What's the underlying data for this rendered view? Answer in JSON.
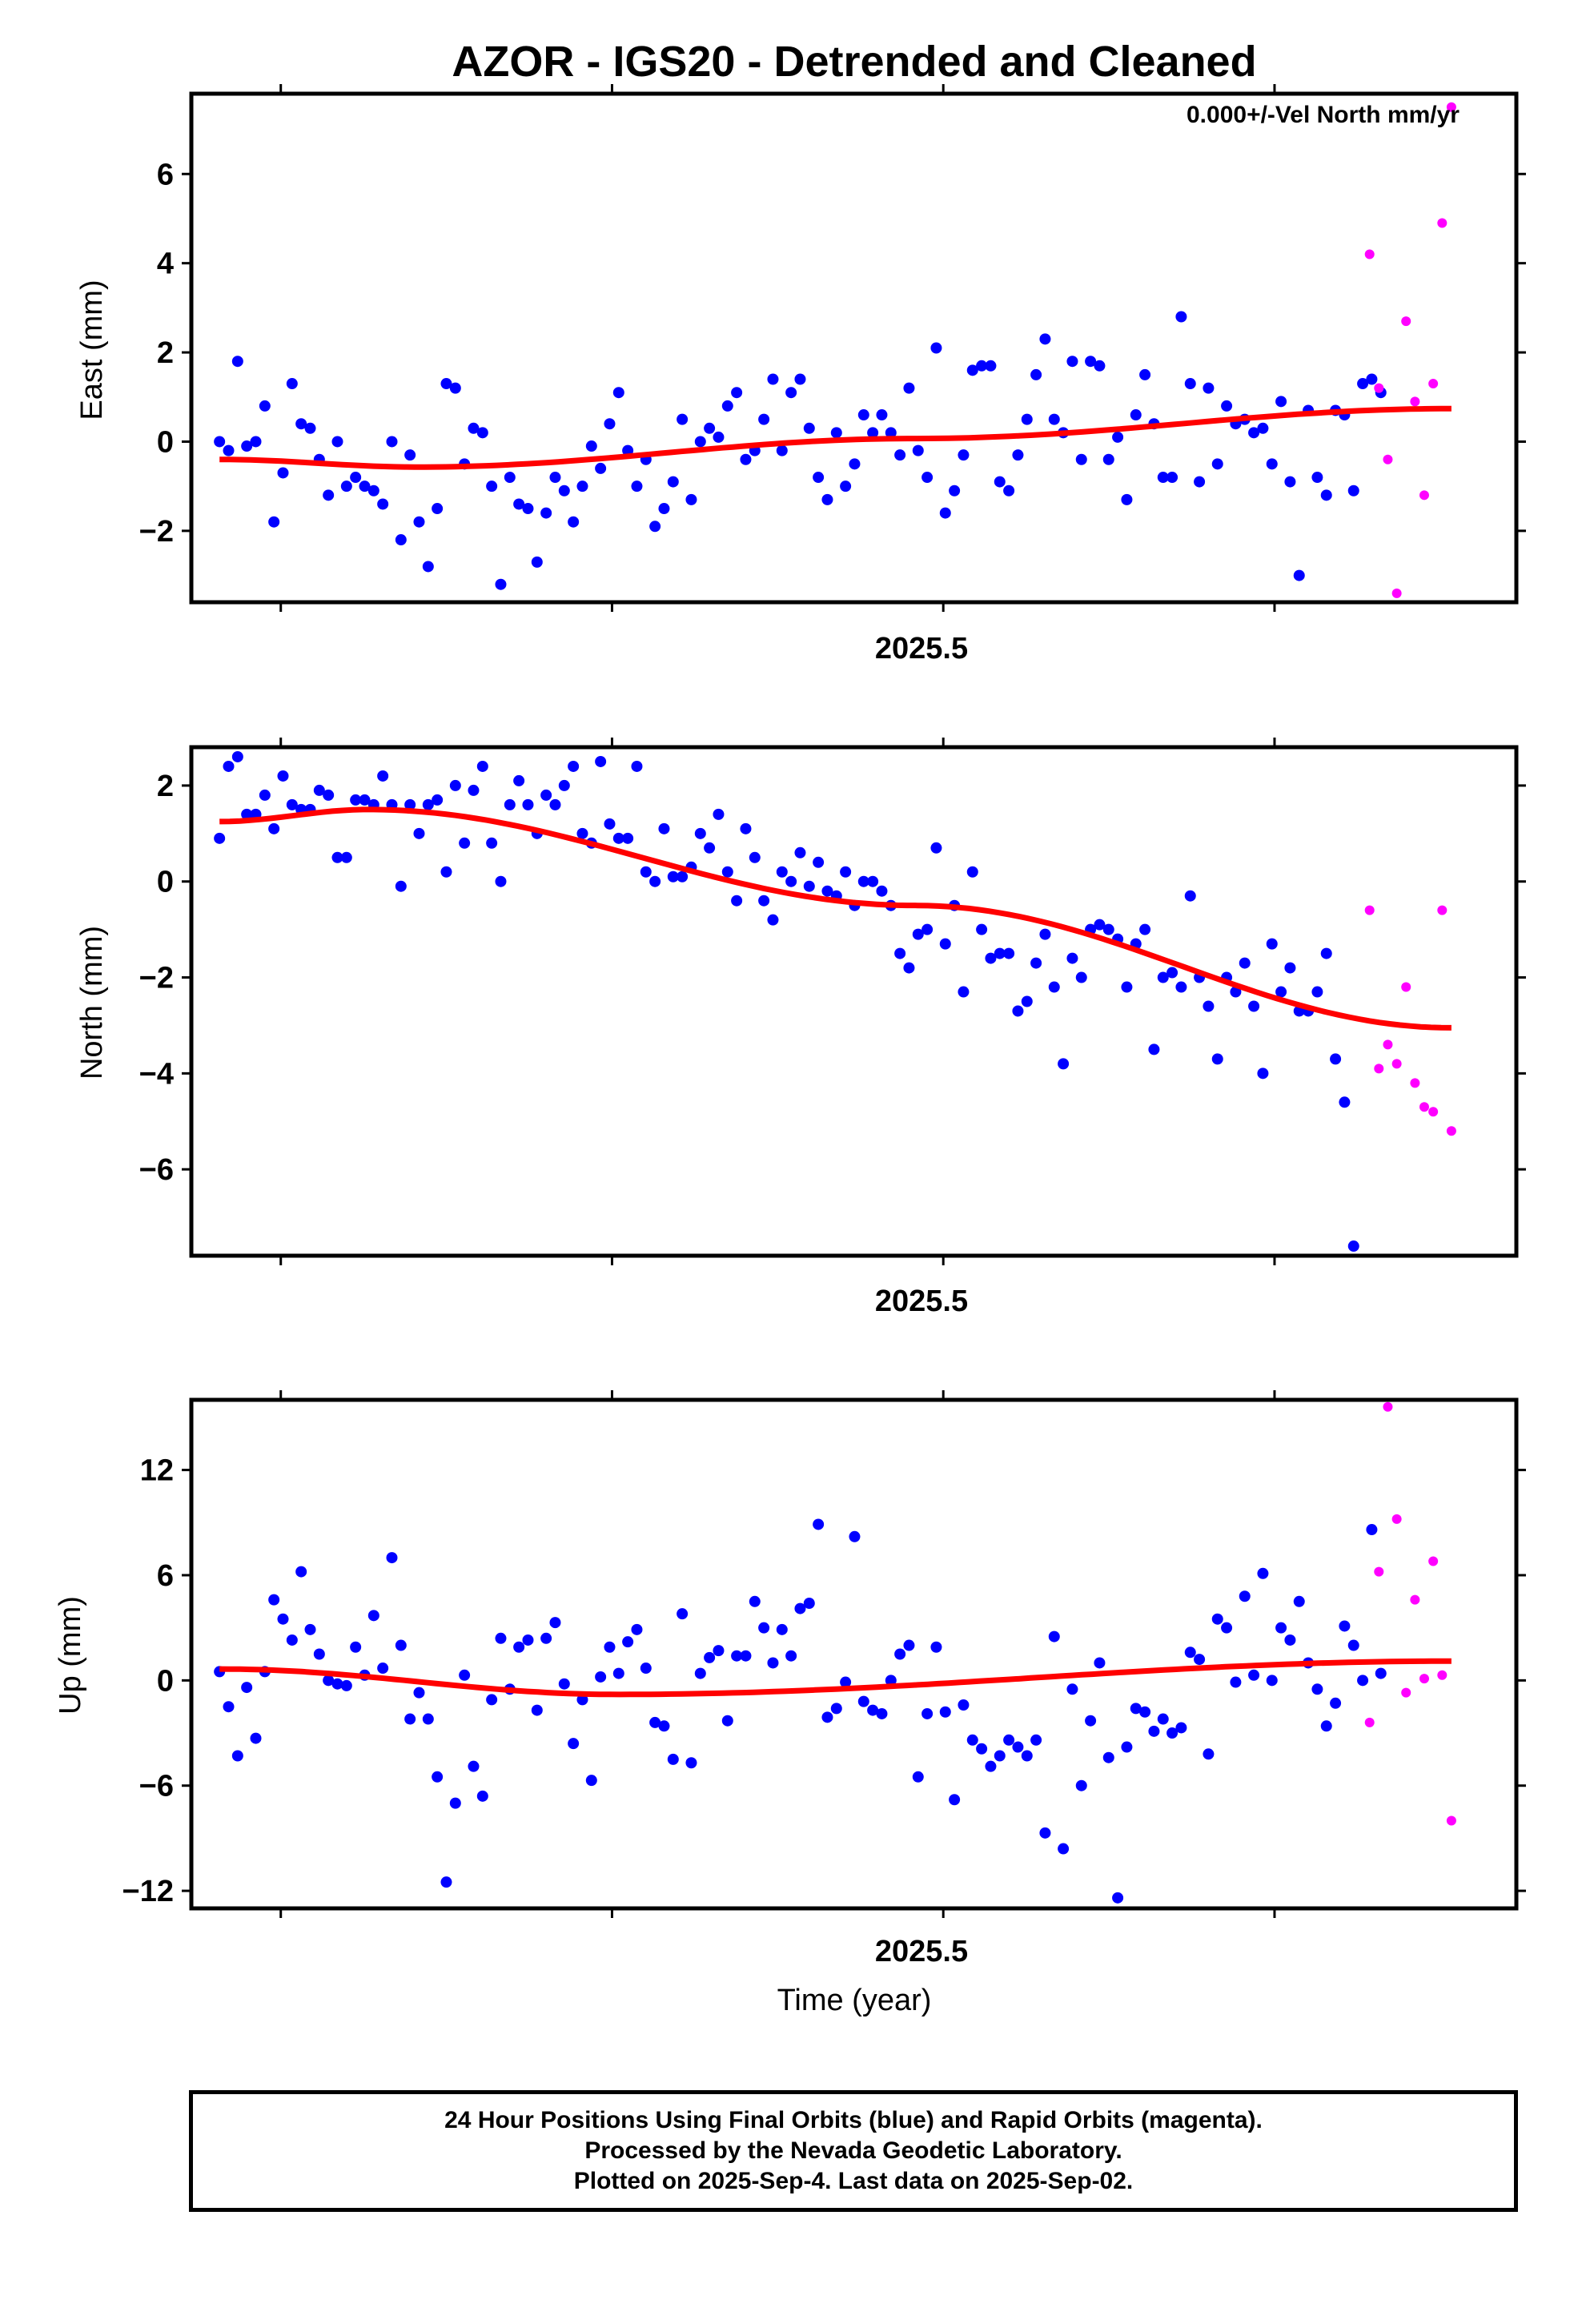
{
  "title": "AZOR - IGS20 - Detrended and Cleaned",
  "legend_note": "0.000+/-Vel North mm/yr",
  "colors": {
    "final_orbits": "#0000ff",
    "rapid_orbits": "#ff00ff",
    "fit_line": "#ff0000",
    "axes": "#000000"
  },
  "x_axis": {
    "label": "Time (year)",
    "tick_label": "2025.5",
    "range": [
      2025.273,
      2025.673
    ]
  },
  "footer": {
    "line1": "24 Hour Positions Using Final Orbits (blue) and Rapid Orbits (magenta).",
    "line2": "Processed by the Nevada Geodetic Laboratory.",
    "line3": "Plotted on 2025-Sep-4. Last data on 2025-Sep-02."
  },
  "chart_data": [
    {
      "type": "scatter",
      "ylabel": "East (mm)",
      "ylim": [
        -3.6,
        7.8
      ],
      "yticks": [
        -2,
        0,
        2,
        4,
        6
      ],
      "ytick_labels": [
        "−2",
        "0",
        "2",
        "4",
        "6"
      ],
      "series": [
        {
          "values": [
            0.0,
            -0.2,
            1.8,
            -0.1,
            0.0,
            0.8,
            -1.8,
            -0.7,
            1.3,
            0.4,
            0.3,
            -0.4,
            -1.2,
            0.0,
            -1.0,
            -0.8,
            -1.0,
            -1.1,
            -1.4,
            0.0,
            -2.2,
            -0.3,
            -1.8,
            -2.8,
            -1.5,
            1.3,
            1.2,
            -0.5,
            0.3,
            0.2,
            -1.0,
            -3.2,
            -0.8,
            -1.4,
            -1.5,
            -2.7,
            -1.6,
            -0.8,
            -1.1,
            -1.8,
            -1.0,
            -0.1,
            -0.6,
            0.4,
            1.1,
            -0.2,
            -1.0,
            -0.4,
            -1.9,
            -1.5,
            -0.9,
            0.5,
            -1.3,
            0.0,
            0.3,
            0.1,
            0.8,
            1.1,
            -0.4,
            -0.2,
            0.5,
            1.4,
            -0.2,
            1.1,
            1.4,
            0.3,
            -0.8,
            -1.3,
            0.2,
            -1.0,
            -0.5,
            0.6,
            0.2,
            0.6,
            0.2,
            -0.3,
            1.2,
            -0.2,
            -0.8,
            2.1,
            -1.6,
            -1.1,
            -0.3,
            1.6,
            1.7,
            1.7,
            -0.9,
            -1.1,
            -0.3,
            0.5,
            1.5,
            2.3,
            0.5,
            0.2,
            1.8,
            -0.4,
            1.8,
            1.7,
            -0.4,
            0.1,
            -1.3,
            0.6,
            1.5,
            0.4,
            -0.8,
            -0.8,
            2.8,
            1.3,
            -0.9,
            1.2,
            -0.5,
            0.8,
            0.4,
            0.5,
            0.2,
            0.3,
            -0.5,
            0.9,
            -0.9,
            -3.0,
            0.7,
            -0.8,
            -1.2,
            0.7,
            0.6,
            -1.1,
            1.3,
            1.4,
            1.1
          ],
          "x_start": 2025.2815,
          "x_step": 0.002739
        },
        {
          "values": [
            4.2,
            1.2,
            -0.4,
            -3.4,
            2.7,
            0.9,
            -1.2,
            1.3,
            4.9,
            7.5
          ],
          "x": [
            2025.6287,
            2025.6315,
            2025.6342,
            2025.6369,
            2025.6397,
            2025.6424,
            2025.6452,
            2025.6479,
            2025.6506,
            2025.6534
          ]
        },
        {
          "type": "line",
          "x": [
            2025.2815,
            2025.3415,
            2025.4915,
            2025.6534
          ],
          "y": [
            -0.4,
            -0.57,
            0.07,
            0.74
          ]
        }
      ]
    },
    {
      "type": "scatter",
      "ylabel": "North (mm)",
      "ylim": [
        -7.8,
        2.8
      ],
      "yticks": [
        -6,
        -4,
        -2,
        0,
        2
      ],
      "ytick_labels": [
        "−6",
        "−4",
        "−2",
        "0",
        "2"
      ],
      "series": [
        {
          "values": [
            0.9,
            2.4,
            2.6,
            1.4,
            1.4,
            1.8,
            1.1,
            2.2,
            1.6,
            1.5,
            1.5,
            1.9,
            1.8,
            0.5,
            0.5,
            1.7,
            1.7,
            1.6,
            2.2,
            1.6,
            -0.1,
            1.6,
            1.0,
            1.6,
            1.7,
            0.2,
            2.0,
            0.8,
            1.9,
            2.4,
            0.8,
            0.0,
            1.6,
            2.1,
            1.6,
            1.0,
            1.8,
            1.6,
            2.0,
            2.4,
            1.0,
            0.8,
            2.5,
            1.2,
            0.9,
            0.9,
            2.4,
            0.2,
            0.0,
            1.1,
            0.1,
            0.1,
            0.3,
            1.0,
            0.7,
            1.4,
            0.2,
            -0.4,
            1.1,
            0.5,
            -0.4,
            -0.8,
            0.2,
            0.0,
            0.6,
            -0.1,
            0.4,
            -0.2,
            -0.3,
            0.2,
            -0.5,
            0.0,
            0.0,
            -0.2,
            -0.5,
            -1.5,
            -1.8,
            -1.1,
            -1.0,
            0.7,
            -1.3,
            -0.5,
            -2.3,
            0.2,
            -1.0,
            -1.6,
            -1.5,
            -1.5,
            -2.7,
            -2.5,
            -1.7,
            -1.1,
            -2.2,
            -3.8,
            -1.6,
            -2.0,
            -1.0,
            -0.9,
            -1.0,
            -1.2,
            -2.2,
            -1.3,
            -1.0,
            -3.5,
            -2.0,
            -1.9,
            -2.2,
            -0.3,
            -2.0,
            -2.6,
            -3.7,
            -2.0,
            -2.3,
            -1.7,
            -2.6,
            -4.0,
            -1.3,
            -2.3,
            -1.8,
            -2.7,
            -2.7,
            -2.3,
            -1.5,
            -3.7,
            -4.6,
            -7.6
          ],
          "x_start": 2025.2815,
          "x_step": 0.002739
        },
        {
          "values": [
            -0.6,
            -3.9,
            -3.4,
            -3.8,
            -2.2,
            -4.2,
            -4.7,
            -4.8,
            -0.6,
            -5.2
          ],
          "x": [
            2025.6287,
            2025.6315,
            2025.6342,
            2025.6369,
            2025.6397,
            2025.6424,
            2025.6452,
            2025.6479,
            2025.6506,
            2025.6534
          ]
        },
        {
          "type": "line",
          "x": [
            2025.2815,
            2025.3265,
            2025.4915,
            2025.6534
          ],
          "y": [
            1.25,
            1.5,
            -0.5,
            -3.05
          ]
        }
      ]
    },
    {
      "type": "scatter",
      "ylabel": "Up (mm)",
      "ylim": [
        -13.0,
        16.0
      ],
      "yticks": [
        -12,
        -6,
        0,
        6,
        12
      ],
      "ytick_labels": [
        "−12",
        "−6",
        "0",
        "6",
        "12"
      ],
      "series": [
        {
          "values": [
            0.5,
            -1.5,
            -4.3,
            -0.4,
            -3.3,
            0.5,
            4.6,
            3.5,
            2.3,
            6.2,
            2.9,
            1.5,
            0.0,
            -0.2,
            -0.3,
            1.9,
            0.3,
            3.7,
            0.7,
            7.0,
            2.0,
            -2.2,
            -0.7,
            -2.2,
            -5.5,
            -11.5,
            -7.0,
            0.3,
            -4.9,
            -6.6,
            -1.1,
            2.4,
            -0.5,
            1.9,
            2.3,
            -1.7,
            2.4,
            3.3,
            -0.2,
            -3.6,
            -1.1,
            -5.7,
            0.2,
            1.9,
            0.4,
            2.2,
            2.9,
            0.7,
            -2.4,
            -2.6,
            -4.5,
            3.8,
            -4.7,
            0.4,
            1.3,
            1.7,
            -2.3,
            1.4,
            1.4,
            4.5,
            3.0,
            1.0,
            2.9,
            1.4,
            4.1,
            4.4,
            8.9,
            -2.1,
            -1.6,
            -0.1,
            8.2,
            -1.2,
            -1.7,
            -1.9,
            0.0,
            1.5,
            2.0,
            -5.5,
            -1.9,
            1.9,
            -1.8,
            -6.8,
            -1.4,
            -3.4,
            -3.9,
            -4.9,
            -4.3,
            -3.4,
            -3.8,
            -4.3,
            -3.4,
            -8.7,
            2.5,
            -9.6,
            -0.5,
            -6.0,
            -2.3,
            1.0,
            -4.4,
            -12.4,
            -3.8,
            -1.6,
            -1.8,
            -2.9,
            -2.2,
            -3.0,
            -2.7,
            1.6,
            1.2,
            -4.2,
            3.5,
            3.0,
            -0.1,
            4.8,
            0.3,
            6.1,
            0.0,
            3.0,
            2.3,
            4.5,
            1.0,
            -0.5,
            -2.6,
            -1.3,
            3.1,
            2.0,
            0.0,
            8.6,
            0.4
          ],
          "x_start": 2025.2815,
          "x_step": 0.002739
        },
        {
          "values": [
            -2.4,
            6.2,
            15.6,
            9.2,
            -0.7,
            4.6,
            0.1,
            6.8,
            0.3,
            -8.0
          ],
          "x": [
            2025.6287,
            2025.6315,
            2025.6342,
            2025.6369,
            2025.6397,
            2025.6424,
            2025.6452,
            2025.6479,
            2025.6506,
            2025.6534
          ]
        },
        {
          "type": "line",
          "x": [
            2025.2815,
            2025.4015,
            2025.6534
          ],
          "y": [
            0.65,
            -0.8,
            1.1
          ]
        }
      ]
    }
  ]
}
